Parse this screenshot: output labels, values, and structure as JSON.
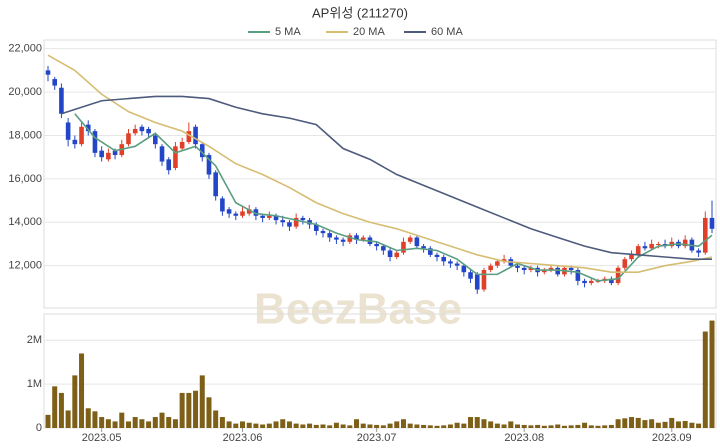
{
  "chart_data": {
    "type": "candlestick",
    "title": "AP위성 (211270)",
    "watermark": "BeezBase",
    "categories": [
      null,
      null,
      null,
      null,
      null,
      null,
      null,
      null,
      "2023.05",
      null,
      null,
      null,
      null,
      null,
      null,
      null,
      null,
      null,
      null,
      null,
      null,
      null,
      null,
      null,
      null,
      null,
      null,
      null,
      null,
      "2023.06",
      null,
      null,
      null,
      null,
      null,
      null,
      null,
      null,
      null,
      null,
      null,
      null,
      null,
      null,
      null,
      null,
      null,
      null,
      null,
      "2023.07",
      null,
      null,
      null,
      null,
      null,
      null,
      null,
      null,
      null,
      null,
      null,
      null,
      null,
      null,
      null,
      null,
      null,
      null,
      null,
      null,
      null,
      "2023.08",
      null,
      null,
      null,
      null,
      null,
      null,
      null,
      null,
      null,
      null,
      null,
      null,
      null,
      null,
      null,
      null,
      null,
      null,
      null,
      null,
      null,
      "2023.09",
      null,
      null,
      null,
      null,
      null,
      null
    ],
    "open": [
      21000,
      20600,
      20200,
      18600,
      17800,
      17600,
      18500,
      18200,
      17300,
      16900,
      17300,
      17100,
      17600,
      18100,
      18400,
      18300,
      18000,
      17500,
      16900,
      16500,
      17400,
      17700,
      18400,
      17600,
      17100,
      16300,
      15100,
      14600,
      14400,
      14300,
      14400,
      14600,
      14300,
      14200,
      14300,
      14100,
      14000,
      13800,
      14200,
      14100,
      13900,
      13600,
      13500,
      13300,
      13200,
      13100,
      13400,
      13200,
      13300,
      13000,
      12900,
      12700,
      12400,
      12600,
      13100,
      13300,
      12900,
      12800,
      12500,
      12400,
      12200,
      12100,
      12000,
      11700,
      11600,
      10900,
      11800,
      12000,
      12200,
      12300,
      12000,
      11900,
      11800,
      11900,
      11700,
      11800,
      11900,
      11600,
      11900,
      11800,
      11300,
      11200,
      11300,
      11300,
      11400,
      11200,
      11900,
      12300,
      12500,
      12900,
      12800,
      13000,
      13000,
      12900,
      13100,
      12900,
      13200,
      12700,
      12600,
      14200
    ],
    "high": [
      21200,
      20700,
      20400,
      18800,
      18000,
      18600,
      18700,
      18300,
      17500,
      17400,
      17400,
      17800,
      18300,
      18500,
      18500,
      18400,
      18100,
      17600,
      17000,
      17700,
      17900,
      18600,
      18500,
      17700,
      17200,
      16400,
      15200,
      14700,
      14500,
      14700,
      14800,
      14700,
      14400,
      14500,
      14400,
      14300,
      14100,
      14400,
      14300,
      14200,
      14000,
      13700,
      13600,
      13400,
      13300,
      13500,
      13500,
      13400,
      13400,
      13100,
      13000,
      12800,
      12700,
      13300,
      13400,
      13400,
      13000,
      12900,
      12600,
      12500,
      12300,
      12200,
      12100,
      11800,
      11700,
      11900,
      12100,
      12300,
      12500,
      12400,
      12100,
      12000,
      12000,
      12000,
      11900,
      12000,
      12000,
      12000,
      12000,
      11900,
      11400,
      11400,
      11400,
      11500,
      11500,
      12000,
      12400,
      12700,
      13000,
      13100,
      13200,
      13100,
      13200,
      13300,
      13200,
      13400,
      13300,
      12800,
      14500,
      15000
    ],
    "low": [
      20500,
      20100,
      18800,
      17500,
      17400,
      17500,
      18000,
      17000,
      16800,
      16800,
      16900,
      17000,
      17500,
      18000,
      18000,
      17900,
      17400,
      16600,
      16200,
      16400,
      17300,
      17600,
      17400,
      16800,
      16000,
      15000,
      14300,
      14200,
      14100,
      14200,
      14300,
      14100,
      14000,
      14100,
      13900,
      13800,
      13600,
      13700,
      13900,
      13700,
      13400,
      13300,
      13100,
      13000,
      12900,
      13000,
      13000,
      13100,
      12900,
      12700,
      12500,
      12200,
      12300,
      12500,
      13000,
      12800,
      12600,
      12400,
      12200,
      12000,
      11900,
      11800,
      11500,
      11200,
      10700,
      10800,
      11700,
      11900,
      12100,
      11900,
      11700,
      11600,
      11700,
      11500,
      11600,
      11700,
      11500,
      11500,
      11600,
      11100,
      11000,
      11100,
      11200,
      11200,
      11100,
      11100,
      11800,
      12200,
      12400,
      12700,
      12700,
      12800,
      12800,
      12800,
      12800,
      12800,
      12600,
      12400,
      12500,
      13500
    ],
    "close": [
      20800,
      20300,
      19000,
      17800,
      17600,
      18400,
      18200,
      17200,
      17000,
      17200,
      17100,
      17600,
      18100,
      18300,
      18200,
      18100,
      17600,
      16800,
      16400,
      17500,
      17700,
      18200,
      17600,
      17000,
      16200,
      15200,
      14500,
      14400,
      14300,
      14500,
      14600,
      14300,
      14200,
      14300,
      14100,
      14000,
      13800,
      14200,
      14100,
      13900,
      13600,
      13500,
      13300,
      13200,
      13100,
      13400,
      13200,
      13300,
      13000,
      12900,
      12700,
      12400,
      12600,
      13100,
      13300,
      12900,
      12800,
      12500,
      12400,
      12200,
      12100,
      12000,
      11700,
      11400,
      10900,
      11800,
      12000,
      12200,
      12300,
      12000,
      11900,
      11800,
      11900,
      11700,
      11800,
      11900,
      11600,
      11900,
      11800,
      11300,
      11200,
      11300,
      11300,
      11400,
      11200,
      11900,
      12300,
      12500,
      12900,
      12800,
      13000,
      13000,
      12900,
      13100,
      12900,
      13200,
      12700,
      12600,
      14200,
      13700
    ],
    "up_color": "#e0402a",
    "down_color": "#2346c8",
    "ylim": [
      10050,
      22400
    ],
    "yticks": [
      {
        "value": 12000,
        "label": "12,000"
      },
      {
        "value": 14000,
        "label": "14,000"
      },
      {
        "value": 16000,
        "label": "16,000"
      },
      {
        "value": 18000,
        "label": "18,000"
      },
      {
        "value": 20000,
        "label": "20,000"
      },
      {
        "value": 22000,
        "label": "22,000"
      }
    ],
    "grid": true,
    "series": [
      {
        "name": "5 MA",
        "color": "#5a9e80",
        "x": [
          4,
          7,
          10,
          13,
          16,
          19,
          22,
          25,
          28,
          31,
          34,
          37,
          40,
          43,
          46,
          49,
          52,
          55,
          58,
          61,
          64,
          67,
          70,
          73,
          76,
          79,
          82,
          85,
          88,
          91,
          94,
          97,
          99
        ],
        "values": [
          19000,
          17900,
          17300,
          17500,
          18100,
          17200,
          17500,
          16600,
          14900,
          14400,
          14300,
          14100,
          13900,
          13500,
          13200,
          13100,
          12700,
          12800,
          12700,
          12300,
          11600,
          11600,
          12100,
          11800,
          11800,
          11700,
          11300,
          11400,
          12400,
          12900,
          13000,
          12900,
          13400
        ]
      },
      {
        "name": "20 MA",
        "color": "#d6bd72",
        "x": [
          0,
          4,
          8,
          12,
          16,
          20,
          24,
          28,
          32,
          36,
          40,
          44,
          48,
          52,
          56,
          60,
          64,
          68,
          72,
          76,
          80,
          84,
          88,
          92,
          96,
          99
        ],
        "values": [
          21700,
          21000,
          19900,
          19100,
          18600,
          18200,
          17500,
          16700,
          16200,
          15600,
          14900,
          14400,
          14000,
          13700,
          13300,
          12900,
          12500,
          12200,
          12100,
          12000,
          11900,
          11700,
          11700,
          12000,
          12200,
          12400
        ]
      },
      {
        "name": "60 MA",
        "color": "#4d5b7c",
        "x": [
          2,
          8,
          12,
          16,
          20,
          24,
          28,
          32,
          36,
          40,
          44,
          48,
          52,
          56,
          60,
          64,
          68,
          72,
          76,
          80,
          84,
          88,
          92,
          96,
          99
        ],
        "values": [
          19000,
          19600,
          19700,
          19800,
          19800,
          19700,
          19300,
          19000,
          18800,
          18500,
          17400,
          16900,
          16200,
          15700,
          15200,
          14700,
          14200,
          13700,
          13300,
          12900,
          12600,
          12500,
          12400,
          12300,
          12300
        ]
      }
    ],
    "volume": {
      "color": "#7d5f17",
      "values": [
        300000,
        950000,
        800000,
        400000,
        1200000,
        1700000,
        450000,
        380000,
        250000,
        200000,
        150000,
        350000,
        150000,
        250000,
        200000,
        150000,
        250000,
        350000,
        250000,
        200000,
        800000,
        800000,
        850000,
        1200000,
        700000,
        400000,
        250000,
        150000,
        100000,
        150000,
        120000,
        100000,
        80000,
        100000,
        150000,
        200000,
        150000,
        100000,
        80000,
        100000,
        70000,
        80000,
        60000,
        120000,
        80000,
        60000,
        200000,
        100000,
        80000,
        70000,
        60000,
        100000,
        150000,
        200000,
        100000,
        80000,
        70000,
        60000,
        50000,
        60000,
        80000,
        120000,
        100000,
        250000,
        250000,
        200000,
        150000,
        100000,
        80000,
        150000,
        80000,
        70000,
        60000,
        70000,
        50000,
        60000,
        80000,
        50000,
        60000,
        70000,
        120000,
        60000,
        50000,
        60000,
        70000,
        200000,
        220000,
        250000,
        230000,
        180000,
        200000,
        120000,
        140000,
        230000,
        150000,
        160000,
        120000,
        100000,
        2200000,
        2450000
      ],
      "ylim": [
        0,
        2600000
      ],
      "yticks": [
        0,
        {
          "value": 1000000,
          "label": "1M"
        },
        {
          "value": 2000000,
          "label": "2M"
        }
      ]
    }
  }
}
